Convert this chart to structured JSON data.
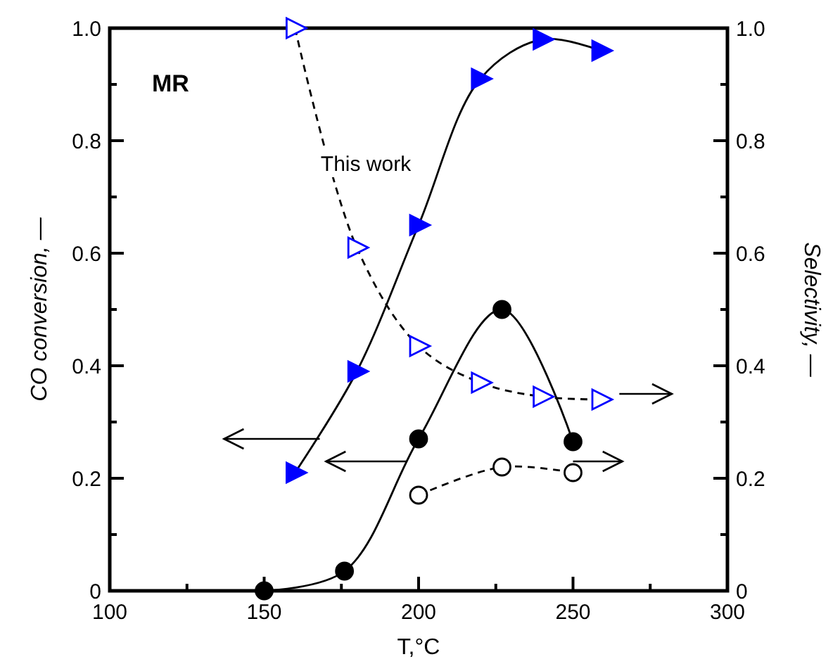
{
  "chart_data": {
    "type": "line",
    "xlabel": "T,°C",
    "ylabel": "CO conversion, —",
    "y2label": "Selectivity, —",
    "xlim": [
      100,
      300
    ],
    "xticks": [
      100,
      {
        "value": 125,
        "label": null
      },
      150,
      {
        "value": 175,
        "label": null
      },
      200,
      {
        "value": 225,
        "label": null
      },
      250,
      {
        "value": 275,
        "label": null
      },
      300
    ],
    "ylim": [
      0,
      1
    ],
    "yticks": [
      {
        "value": 0,
        "label": "0"
      },
      {
        "value": 0.1,
        "label": null
      },
      0.2,
      {
        "value": 0.3,
        "label": null
      },
      0.4,
      {
        "value": 0.5,
        "label": null
      },
      0.6,
      {
        "value": 0.7,
        "label": null
      },
      0.8,
      {
        "value": 0.9,
        "label": null
      },
      {
        "value": 1,
        "label": "1.0"
      }
    ],
    "y2lim": [
      0,
      1
    ],
    "y2ticks": [
      {
        "value": 0,
        "label": "0"
      },
      {
        "value": 0.1,
        "label": null
      },
      0.2,
      {
        "value": 0.3,
        "label": null
      },
      0.4,
      {
        "value": 0.5,
        "label": null
      },
      0.6,
      {
        "value": 0.7,
        "label": null
      },
      0.8,
      {
        "value": 0.9,
        "label": null
      },
      {
        "value": 1,
        "label": "1.0"
      }
    ],
    "grid": false,
    "series": [
      {
        "color": "#0000ff",
        "marker": "triangle",
        "line_style": "solid",
        "x": [
          160,
          180,
          200,
          220,
          240,
          259
        ],
        "values": [
          0.21,
          0.39,
          0.65,
          0.91,
          0.98,
          0.96
        ]
      },
      {
        "color": "#000000",
        "marker": "circle",
        "line_style": "solid",
        "x": [
          150,
          176,
          200,
          227,
          250
        ],
        "values": [
          0,
          0.035,
          0.27,
          0.5,
          0.265
        ]
      },
      {
        "color": "#0000ff",
        "marker": "triangle",
        "line_style": "dashed",
        "axis": "y2",
        "x": [
          160,
          180,
          200,
          220,
          240,
          259
        ],
        "values": [
          1.0,
          0.61,
          0.435,
          0.37,
          0.345,
          0.34
        ]
      },
      {
        "color": "#000000",
        "marker": "circle",
        "line_style": "dashed",
        "axis": "y2",
        "x": [
          200,
          227,
          250
        ],
        "values": [
          0.17,
          0.22,
          0.21
        ]
      }
    ],
    "annotations": [
      "MR",
      "This work"
    ]
  }
}
